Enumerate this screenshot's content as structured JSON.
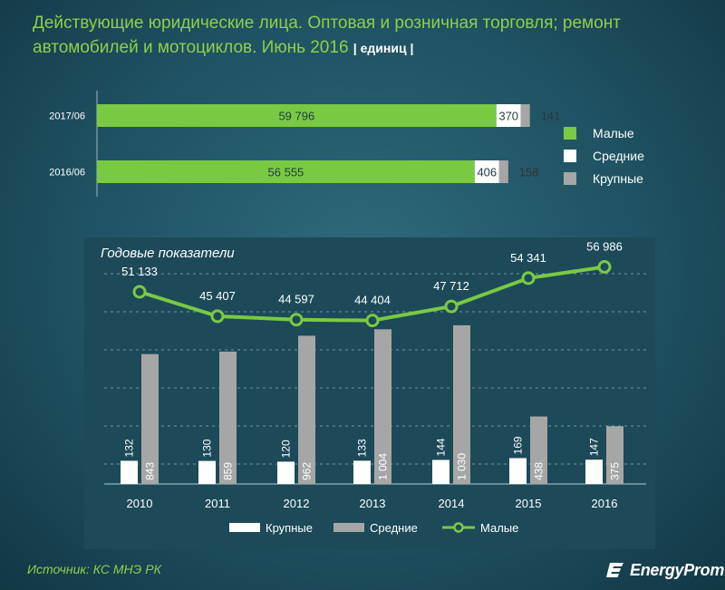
{
  "title": {
    "text": "Действующие юридические лица. Оптовая и розничная торговля; ремонт автомобилей и мотоциклов. Июнь 2016",
    "unit": "| единиц |"
  },
  "source": "Источник: КС МНЭ РК",
  "logo": "EnergyProm",
  "colors": {
    "green": "#7ac943",
    "white": "#ffffff",
    "gray": "#a6a6a6",
    "title_green": "#8ecf4a"
  },
  "chart_data": [
    {
      "type": "bar",
      "orientation": "horizontal",
      "stacked": true,
      "categories": [
        "2017/06",
        "2016/06"
      ],
      "series": [
        {
          "name": "Малые",
          "values": [
            59796,
            56555
          ],
          "labels": [
            "59 796",
            "56 555"
          ]
        },
        {
          "name": "Средние",
          "values": [
            370,
            406
          ],
          "labels": [
            "370",
            "406"
          ]
        },
        {
          "name": "Крупные",
          "values": [
            141,
            158
          ],
          "labels": [
            "141",
            "158"
          ]
        }
      ],
      "legend": [
        "Малые",
        "Средние",
        "Крупные"
      ],
      "legend_position": "right"
    },
    {
      "type": "bar+line",
      "title": "Годовые показатели",
      "categories": [
        "2010",
        "2011",
        "2012",
        "2013",
        "2014",
        "2015",
        "2016"
      ],
      "series": [
        {
          "name": "Крупные",
          "type": "bar",
          "values": [
            132,
            130,
            120,
            133,
            144,
            169,
            147
          ],
          "labels": [
            "132",
            "130",
            "120",
            "133",
            "144",
            "169",
            "147"
          ]
        },
        {
          "name": "Средние",
          "type": "bar",
          "values": [
            843,
            859,
            962,
            1004,
            1030,
            438,
            375
          ],
          "labels": [
            "843",
            "859",
            "962",
            "1 004",
            "1 030",
            "438",
            "375"
          ]
        },
        {
          "name": "Малые",
          "type": "line",
          "values": [
            51133,
            45407,
            44597,
            44404,
            47712,
            54341,
            56986
          ],
          "labels": [
            "51 133",
            "45 407",
            "44 597",
            "44 404",
            "47 712",
            "54 341",
            "56 986"
          ]
        }
      ],
      "legend": [
        "Крупные",
        "Средние",
        "Малые"
      ],
      "legend_position": "bottom",
      "grid": true
    }
  ]
}
